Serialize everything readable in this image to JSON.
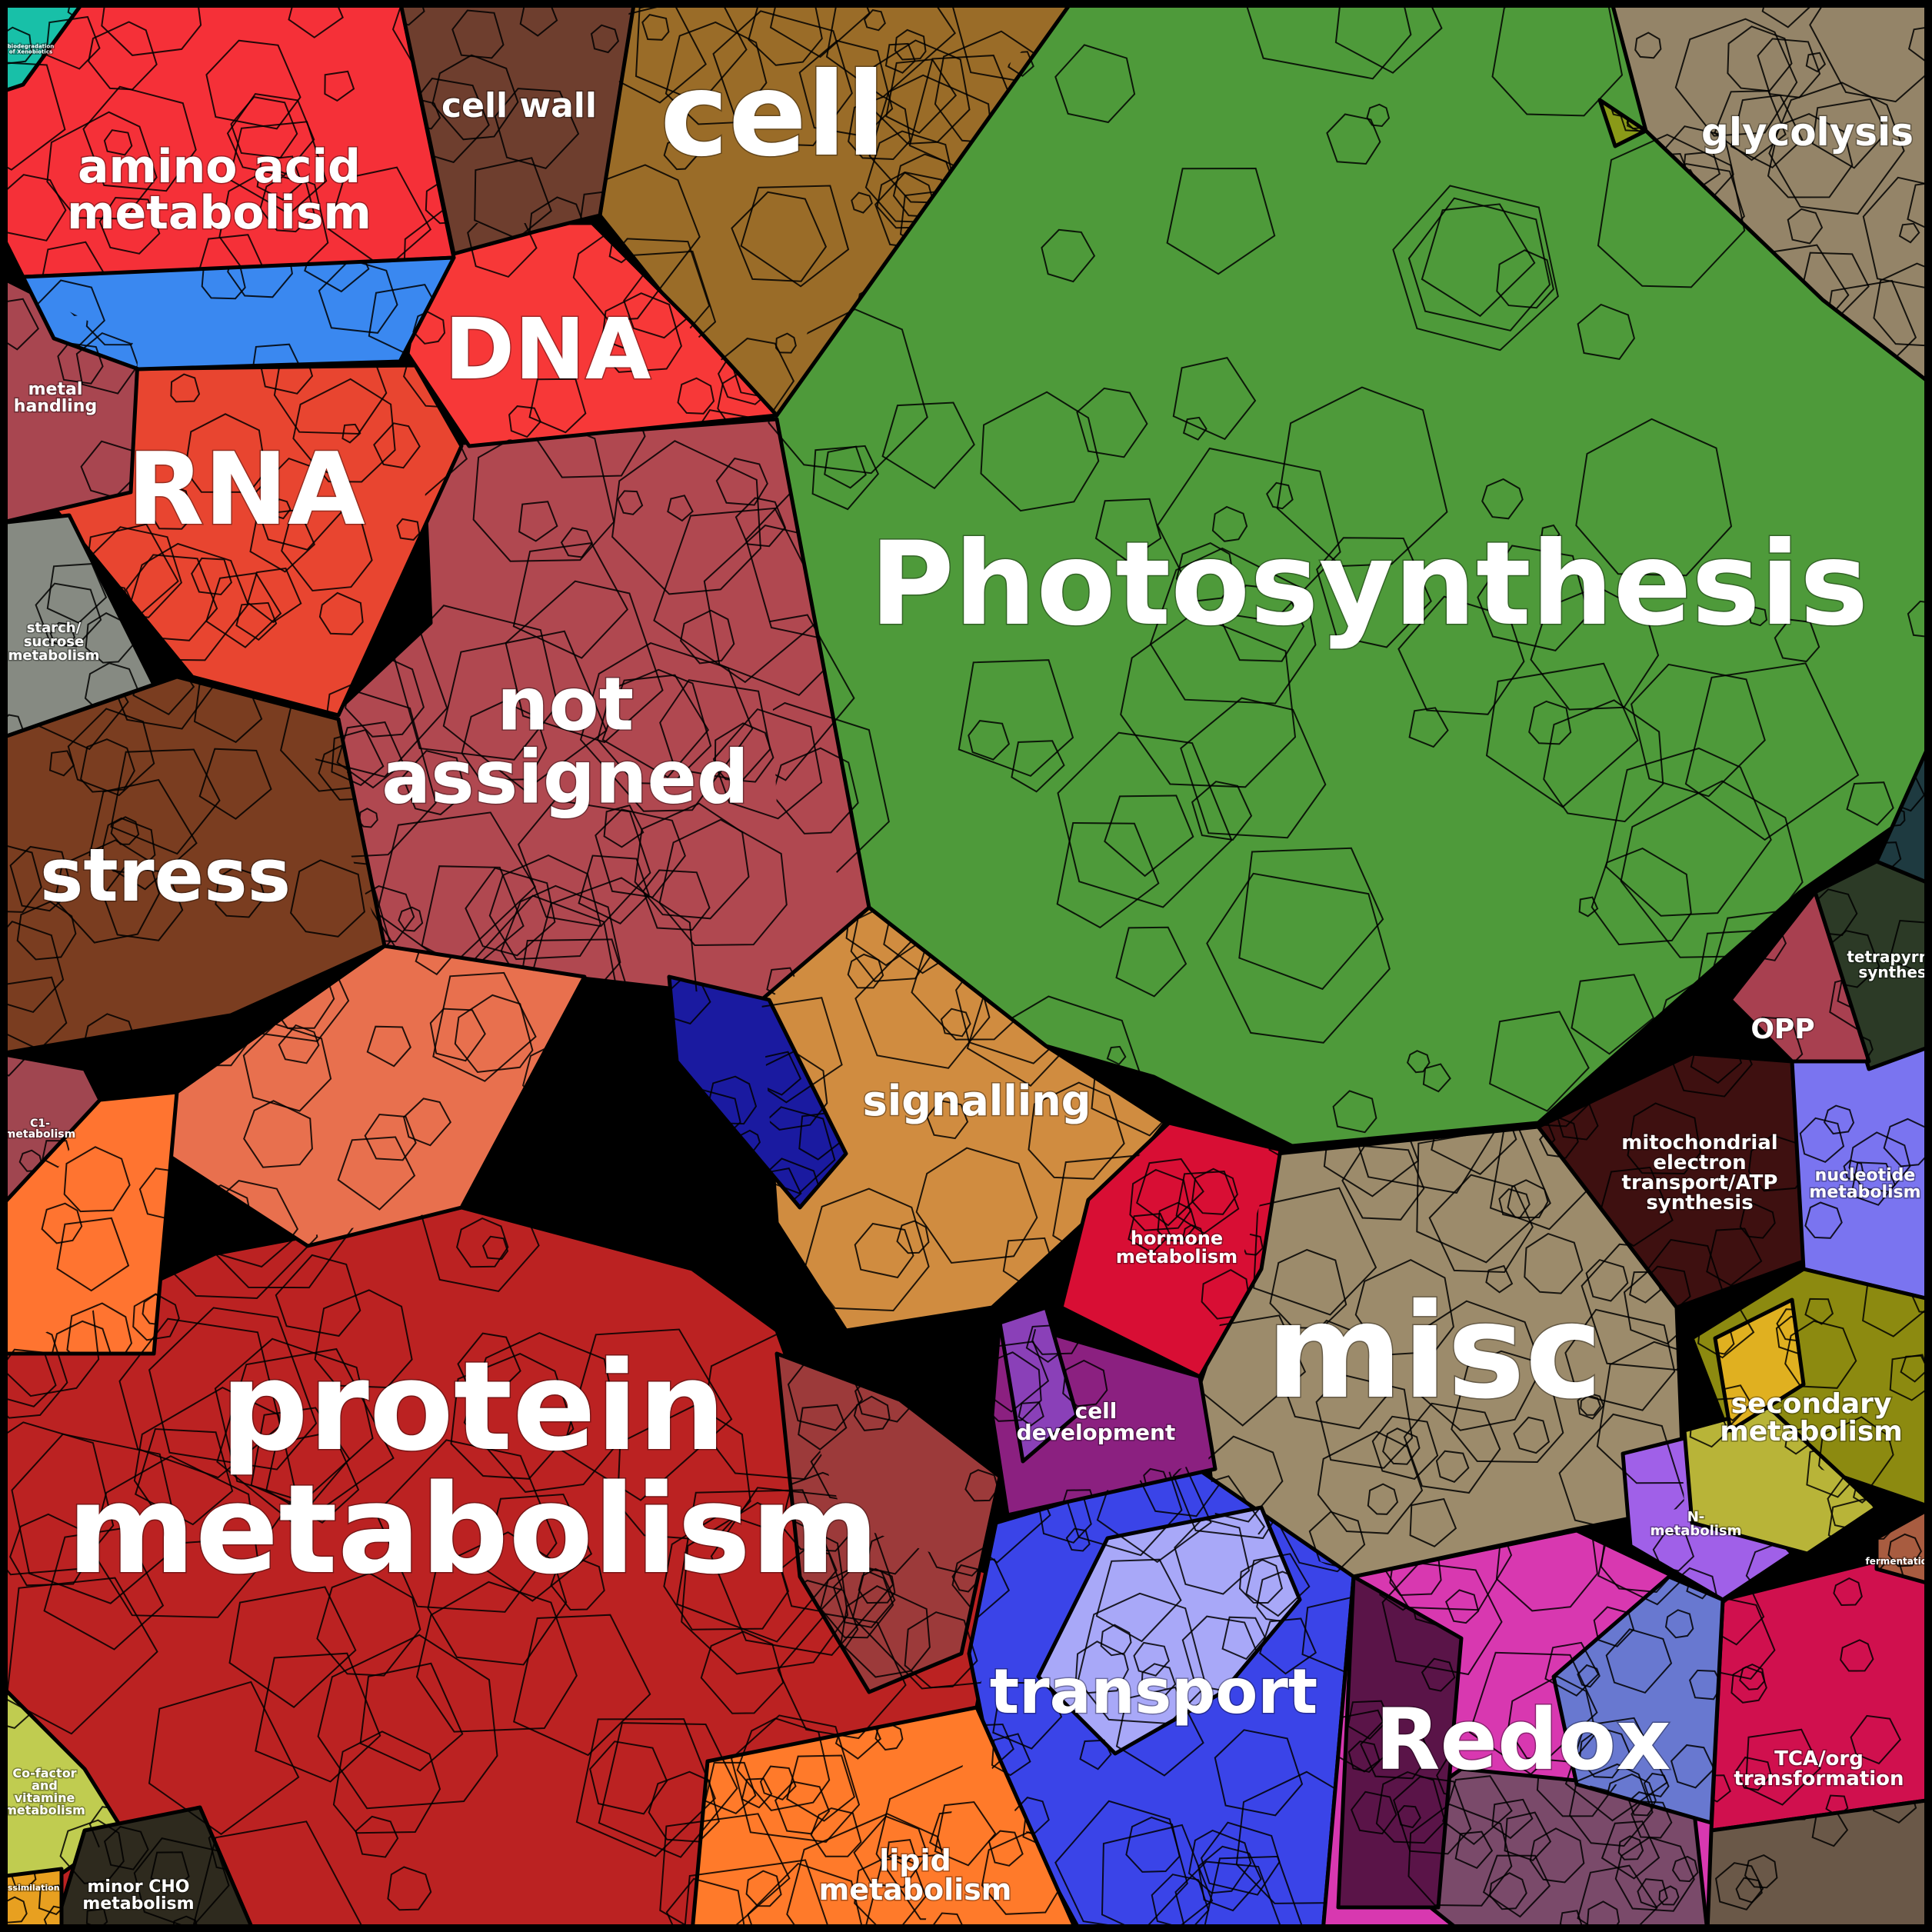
{
  "diagram": {
    "type": "voronoi-treemap",
    "categories": [
      {
        "id": "photosynthesis",
        "label_lines": [
          "Photosynthesis"
        ],
        "color": "#4e9a3a"
      },
      {
        "id": "protein-metabolism",
        "label_lines": [
          "protein",
          "metabolism"
        ],
        "color": "#bb2222"
      },
      {
        "id": "not-assigned",
        "label_lines": [
          "not",
          "assigned"
        ],
        "color": "#b04850"
      },
      {
        "id": "misc",
        "label_lines": [
          "misc"
        ],
        "color": "#9c8b6b"
      },
      {
        "id": "rna",
        "label_lines": [
          "RNA"
        ],
        "color": "#e84530"
      },
      {
        "id": "cell",
        "label_lines": [
          "cell"
        ],
        "color": "#9a6c28"
      },
      {
        "id": "stress",
        "label_lines": [
          "stress"
        ],
        "color": "#7a3d20"
      },
      {
        "id": "dna",
        "label_lines": [
          "DNA"
        ],
        "color": "#f73838"
      },
      {
        "id": "amino-acid-metabolism",
        "label_lines": [
          "amino acid",
          "metabolism"
        ],
        "color": "#f53038"
      },
      {
        "id": "cell-wall",
        "label_lines": [
          "cell wall"
        ],
        "color": "#6e3e2e"
      },
      {
        "id": "glycolysis",
        "label_lines": [
          "glycolysis"
        ],
        "color": "#948468"
      },
      {
        "id": "signalling",
        "label_lines": [
          "signalling"
        ],
        "color": "#d08c40"
      },
      {
        "id": "transport",
        "label_lines": [
          "transport"
        ],
        "color": "#3a44e8"
      },
      {
        "id": "redox",
        "label_lines": [
          "Redox"
        ],
        "color": "#d838b0"
      },
      {
        "id": "hormone-metabolism",
        "label_lines": [
          "hormone",
          "metabolism"
        ],
        "color": "#d80e34"
      },
      {
        "id": "cell-development",
        "label_lines": [
          "cell",
          "development"
        ],
        "color": "#8b2080"
      },
      {
        "id": "lipid-metabolism",
        "label_lines": [
          "lipid",
          "metabolism"
        ],
        "color": "#ff7a2a"
      },
      {
        "id": "mitochondrial-electron-transport",
        "label_lines": [
          "mitochondrial",
          "electron",
          "transport/ATP",
          "synthesis"
        ],
        "color": "#3e1010"
      },
      {
        "id": "nucleotide-metabolism",
        "label_lines": [
          "nucleotide",
          "metabolism"
        ],
        "color": "#7a74f0"
      },
      {
        "id": "secondary-metabolism",
        "label_lines": [
          "secondary",
          "metabolism"
        ],
        "color": "#8c8a10"
      },
      {
        "id": "tca-org-transformation",
        "label_lines": [
          "TCA/org",
          "transformation"
        ],
        "color": "#d0104e"
      },
      {
        "id": "tetrapyrrole-synthesis",
        "label_lines": [
          "tetrapyrrole",
          "synthesis"
        ],
        "color": "#2c3a26"
      },
      {
        "id": "opp",
        "label_lines": [
          "OPP"
        ],
        "color": "#a84050"
      },
      {
        "id": "n-metabolism",
        "label_lines": [
          "N-",
          "metabolism"
        ],
        "color": "#a060e8"
      },
      {
        "id": "fermentation",
        "label_lines": [
          "fermentation"
        ],
        "color": "#a85c40"
      },
      {
        "id": "metal-handling",
        "label_lines": [
          "metal",
          "handling"
        ],
        "color": "#a84650"
      },
      {
        "id": "starch-sucrose-metabolism",
        "label_lines": [
          "starch/",
          "sucrose",
          "metabolism"
        ],
        "color": "#868a82"
      },
      {
        "id": "c1-metabolism",
        "label_lines": [
          "C1-",
          "metabolism"
        ],
        "color": "#a04650"
      },
      {
        "id": "cofactor-vitamine-metabolism",
        "label_lines": [
          "Co-factor",
          "and",
          "vitamine",
          "metabolism"
        ],
        "color": "#c0cc50"
      },
      {
        "id": "minor-cho-metabolism",
        "label_lines": [
          "minor CHO",
          "metabolism"
        ],
        "color": "#2e2a1e"
      },
      {
        "id": "assimilation",
        "label_lines": [
          "assimilation"
        ],
        "color": "#e8a020"
      },
      {
        "id": "biodegradation",
        "label_lines": [
          "biodegradation",
          "of Xenobiotics"
        ],
        "color": "#18c0a8"
      },
      {
        "id": "blue-region",
        "label_lines": [],
        "color": "#3a88f0"
      },
      {
        "id": "dark-blue-region",
        "label_lines": [],
        "color": "#1a1aa0"
      },
      {
        "id": "light-red-region",
        "label_lines": [],
        "color": "#e8704e"
      },
      {
        "id": "orange-region",
        "label_lines": [],
        "color": "#ff7430"
      },
      {
        "id": "dark-teal-region",
        "label_lines": [],
        "color": "#1e3a40"
      },
      {
        "id": "olive-region",
        "label_lines": [],
        "color": "#8a9a18"
      },
      {
        "id": "brown-region",
        "label_lines": [],
        "color": "#6a5848"
      },
      {
        "id": "purple-region",
        "label_lines": [],
        "color": "#7a4a6a"
      },
      {
        "id": "slate-blue-region",
        "label_lines": [],
        "color": "#6878d0"
      },
      {
        "id": "pale-yellow-region",
        "label_lines": [],
        "color": "#b8b438"
      },
      {
        "id": "dark-magenta-region",
        "label_lines": [],
        "color": "#5a1448"
      },
      {
        "id": "lavender-region",
        "label_lines": [],
        "color": "#a8a8f8"
      },
      {
        "id": "mauve-region",
        "label_lines": [],
        "color": "#9c3a3a"
      },
      {
        "id": "yellow-region",
        "label_lines": [],
        "color": "#e0b020"
      },
      {
        "id": "violet-region",
        "label_lines": [],
        "color": "#8a40b8"
      }
    ]
  }
}
